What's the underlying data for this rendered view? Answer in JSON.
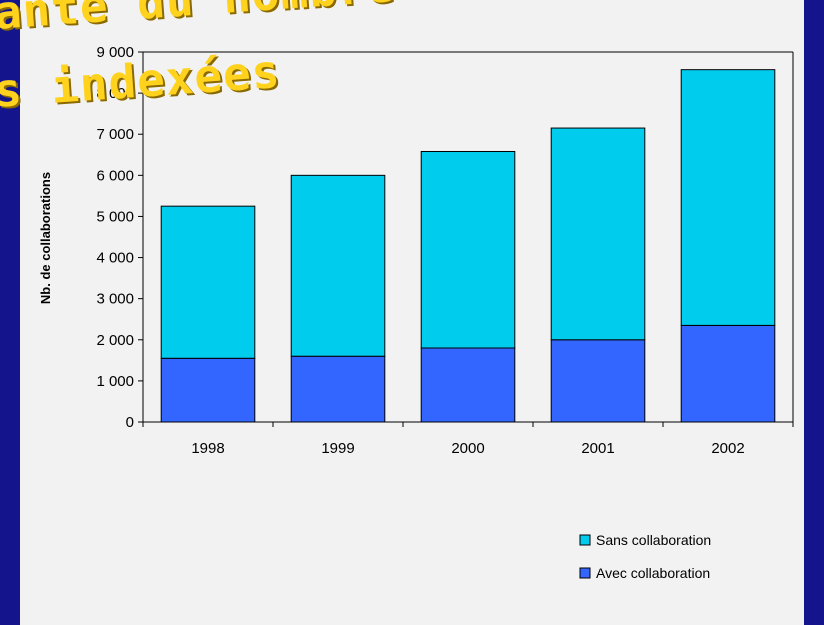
{
  "slide": {
    "title_line_1": "ante du nombre",
    "title_line_2": "s indexées"
  },
  "colors": {
    "background": "#1e1e9a",
    "panel": "#f2f2f2",
    "title": "#ffd21e",
    "sans_collaboration": "#00ccee",
    "avec_collaboration": "#3366ff"
  },
  "chart_data": {
    "type": "bar",
    "stacked": true,
    "categories": [
      "1998",
      "1999",
      "2000",
      "2001",
      "2002"
    ],
    "series": [
      {
        "name": "Avec collaboration",
        "values": [
          1550,
          1600,
          1800,
          2000,
          2350
        ]
      },
      {
        "name": "Sans collaboration",
        "values": [
          3700,
          4400,
          4780,
          5150,
          6220
        ]
      }
    ],
    "ylabel": "Nb. de collaborations",
    "xlabel": "",
    "ylim": [
      0,
      9000
    ],
    "yticks": [
      0,
      1000,
      2000,
      3000,
      4000,
      5000,
      6000,
      7000,
      8000,
      9000
    ],
    "ytick_labels": [
      "0",
      "1 000",
      "2 000",
      "3 000",
      "4 000",
      "5 000",
      "6 000",
      "7 000",
      "8 000",
      "9 000"
    ],
    "legend_entries": [
      "Sans collaboration",
      "Avec collaboration"
    ],
    "legend_position": "bottom-right",
    "grid": false
  }
}
